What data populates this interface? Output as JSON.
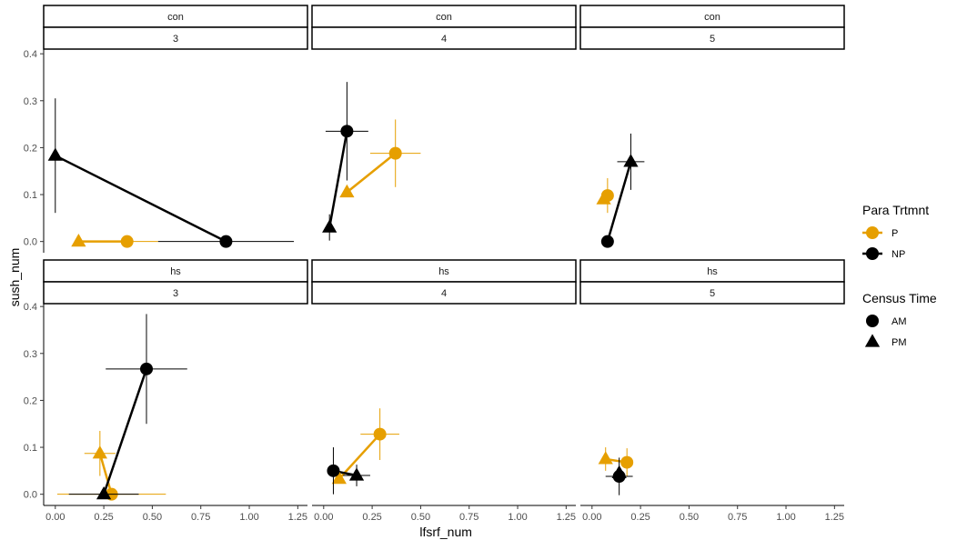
{
  "chart_data": {
    "type": "scatter",
    "xlabel": "lfsrf_num",
    "ylabel": "sush_num",
    "xlim": [
      -0.06,
      1.3
    ],
    "ylim": [
      -0.02,
      0.41
    ],
    "x_ticks": [
      "0.00",
      "0.25",
      "0.50",
      "0.75",
      "1.00",
      "1.25"
    ],
    "y_ticks": [
      "0.0",
      "0.1",
      "0.2",
      "0.3",
      "0.4"
    ],
    "facet_rows": [
      "con",
      "hs"
    ],
    "facet_cols": [
      "3",
      "4",
      "5"
    ],
    "legend": {
      "position": "right",
      "color_title": "Para Trtmnt",
      "color_items": [
        {
          "label": "P",
          "color": "#E69F00"
        },
        {
          "label": "NP",
          "color": "#000000"
        }
      ],
      "shape_title": "Census Time",
      "shape_items": [
        {
          "label": "AM",
          "shape": "circle"
        },
        {
          "label": "PM",
          "shape": "triangle"
        }
      ]
    },
    "panels": [
      {
        "row": "con",
        "col": "3",
        "points": [
          {
            "group": "P",
            "time": "AM",
            "x": 0.37,
            "y": 0.0,
            "xerr": 0.16,
            "yerr": 0.0
          },
          {
            "group": "P",
            "time": "PM",
            "x": 0.12,
            "y": 0.0,
            "xerr": 0.0,
            "yerr": 0.0
          },
          {
            "group": "NP",
            "time": "AM",
            "x": 0.88,
            "y": 0.0,
            "xerr": 0.35,
            "yerr": 0.0
          },
          {
            "group": "NP",
            "time": "PM",
            "x": 0.0,
            "y": 0.183,
            "xerr": 0.0,
            "yerr": 0.122
          }
        ]
      },
      {
        "row": "con",
        "col": "4",
        "points": [
          {
            "group": "P",
            "time": "AM",
            "x": 0.37,
            "y": 0.188,
            "xerr": 0.13,
            "yerr": 0.072
          },
          {
            "group": "P",
            "time": "PM",
            "x": 0.12,
            "y": 0.105,
            "xerr": 0.0,
            "yerr": 0.0
          },
          {
            "group": "NP",
            "time": "AM",
            "x": 0.12,
            "y": 0.235,
            "xerr": 0.11,
            "yerr": 0.105
          },
          {
            "group": "NP",
            "time": "PM",
            "x": 0.03,
            "y": 0.03,
            "xerr": 0.0,
            "yerr": 0.028
          }
        ]
      },
      {
        "row": "con",
        "col": "5",
        "points": [
          {
            "group": "P",
            "time": "AM",
            "x": 0.08,
            "y": 0.098,
            "xerr": 0.0,
            "yerr": 0.037
          },
          {
            "group": "P",
            "time": "PM",
            "x": 0.06,
            "y": 0.09,
            "xerr": 0.0,
            "yerr": 0.0
          },
          {
            "group": "NP",
            "time": "AM",
            "x": 0.08,
            "y": 0.0,
            "xerr": 0.0,
            "yerr": 0.0
          },
          {
            "group": "NP",
            "time": "PM",
            "x": 0.2,
            "y": 0.17,
            "xerr": 0.07,
            "yerr": 0.06
          }
        ]
      },
      {
        "row": "hs",
        "col": "3",
        "points": [
          {
            "group": "P",
            "time": "AM",
            "x": 0.29,
            "y": 0.0,
            "xerr": 0.28,
            "yerr": 0.0
          },
          {
            "group": "P",
            "time": "PM",
            "x": 0.23,
            "y": 0.087,
            "xerr": 0.08,
            "yerr": 0.048
          },
          {
            "group": "NP",
            "time": "AM",
            "x": 0.47,
            "y": 0.267,
            "xerr": 0.21,
            "yerr": 0.117
          },
          {
            "group": "NP",
            "time": "PM",
            "x": 0.25,
            "y": 0.0,
            "xerr": 0.18,
            "yerr": 0.0
          }
        ]
      },
      {
        "row": "hs",
        "col": "4",
        "points": [
          {
            "group": "P",
            "time": "AM",
            "x": 0.29,
            "y": 0.128,
            "xerr": 0.1,
            "yerr": 0.055
          },
          {
            "group": "P",
            "time": "PM",
            "x": 0.08,
            "y": 0.033,
            "xerr": 0.0,
            "yerr": 0.0
          },
          {
            "group": "NP",
            "time": "AM",
            "x": 0.05,
            "y": 0.05,
            "xerr": 0.0,
            "yerr": 0.05
          },
          {
            "group": "NP",
            "time": "PM",
            "x": 0.17,
            "y": 0.04,
            "xerr": 0.07,
            "yerr": 0.023
          }
        ]
      },
      {
        "row": "hs",
        "col": "5",
        "points": [
          {
            "group": "P",
            "time": "AM",
            "x": 0.18,
            "y": 0.068,
            "xerr": 0.0,
            "yerr": 0.03
          },
          {
            "group": "P",
            "time": "PM",
            "x": 0.07,
            "y": 0.075,
            "xerr": 0.0,
            "yerr": 0.025
          },
          {
            "group": "NP",
            "time": "AM",
            "x": 0.14,
            "y": 0.038,
            "xerr": 0.07,
            "yerr": 0.04
          },
          {
            "group": "NP",
            "time": "PM",
            "x": 0.14,
            "y": 0.045,
            "xerr": 0.0,
            "yerr": 0.0
          }
        ]
      }
    ]
  }
}
